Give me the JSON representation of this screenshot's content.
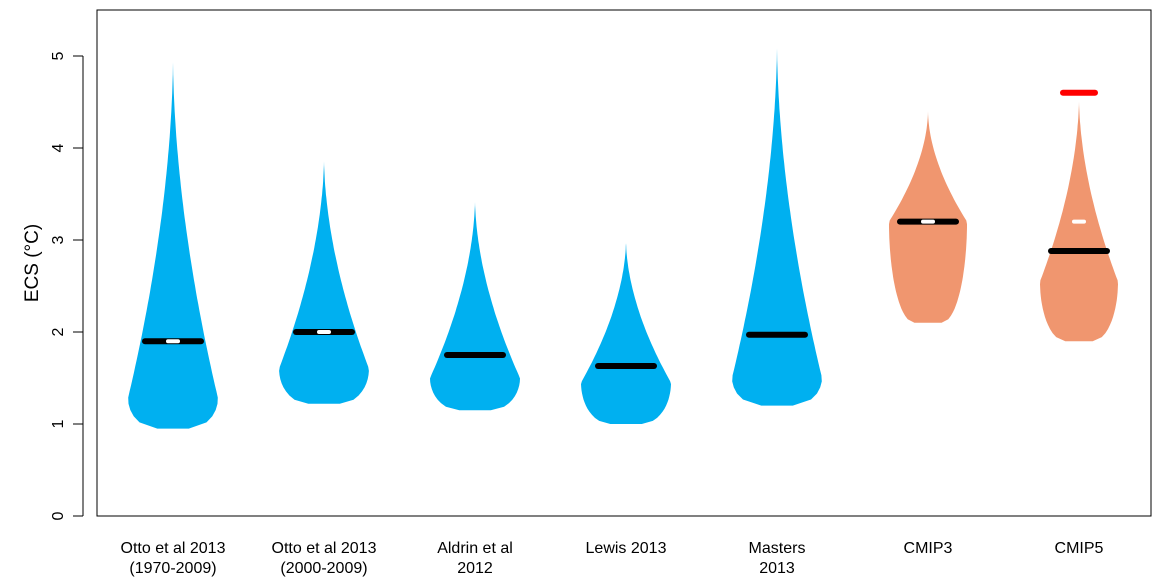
{
  "chart_data": {
    "type": "violin",
    "ylabel": "ECS (°C)",
    "ylim": [
      0,
      5.5
    ],
    "yticks": [
      0,
      1,
      2,
      3,
      4,
      5
    ],
    "grid": false,
    "categories": [
      {
        "lines": [
          "Otto et al 2013",
          "(1970-2009)"
        ],
        "group": "observational",
        "min": 0.95,
        "max": 5.0,
        "widest": 1.28,
        "median": 1.9,
        "mean": 1.9,
        "show_mean": true
      },
      {
        "lines": [
          "Otto et al 2013",
          "(2000-2009)"
        ],
        "group": "observational",
        "min": 1.22,
        "max": 3.9,
        "widest": 1.6,
        "median": 2.0,
        "mean": 2.0,
        "show_mean": true
      },
      {
        "lines": [
          "Aldrin et al",
          "2012"
        ],
        "group": "observational",
        "min": 1.15,
        "max": 3.45,
        "widest": 1.5,
        "median": 1.75,
        "show_mean": false
      },
      {
        "lines": [
          "Lewis 2013"
        ],
        "group": "observational",
        "min": 1.0,
        "max": 3.0,
        "widest": 1.45,
        "median": 1.63,
        "show_mean": false
      },
      {
        "lines": [
          "Masters",
          "2013"
        ],
        "group": "observational",
        "min": 1.2,
        "max": 5.15,
        "widest": 1.5,
        "median": 1.97,
        "show_mean": false
      },
      {
        "lines": [
          "CMIP3"
        ],
        "group": "model",
        "min": 2.1,
        "max": 4.4,
        "widest": 3.2,
        "median": 3.2,
        "mean": 3.2,
        "show_mean": true
      },
      {
        "lines": [
          "CMIP5"
        ],
        "group": "model",
        "min": 1.9,
        "max": 4.55,
        "widest": 2.55,
        "median": 2.88,
        "mean": 3.2,
        "show_mean": true,
        "marker_value": 4.6
      }
    ],
    "colors": {
      "observational": "#00b0f0",
      "model": "#f0966f",
      "median_line": "#000000",
      "mean_marker": "#ffffff",
      "extra_marker": "#ff0000",
      "axis": "#000000"
    }
  }
}
